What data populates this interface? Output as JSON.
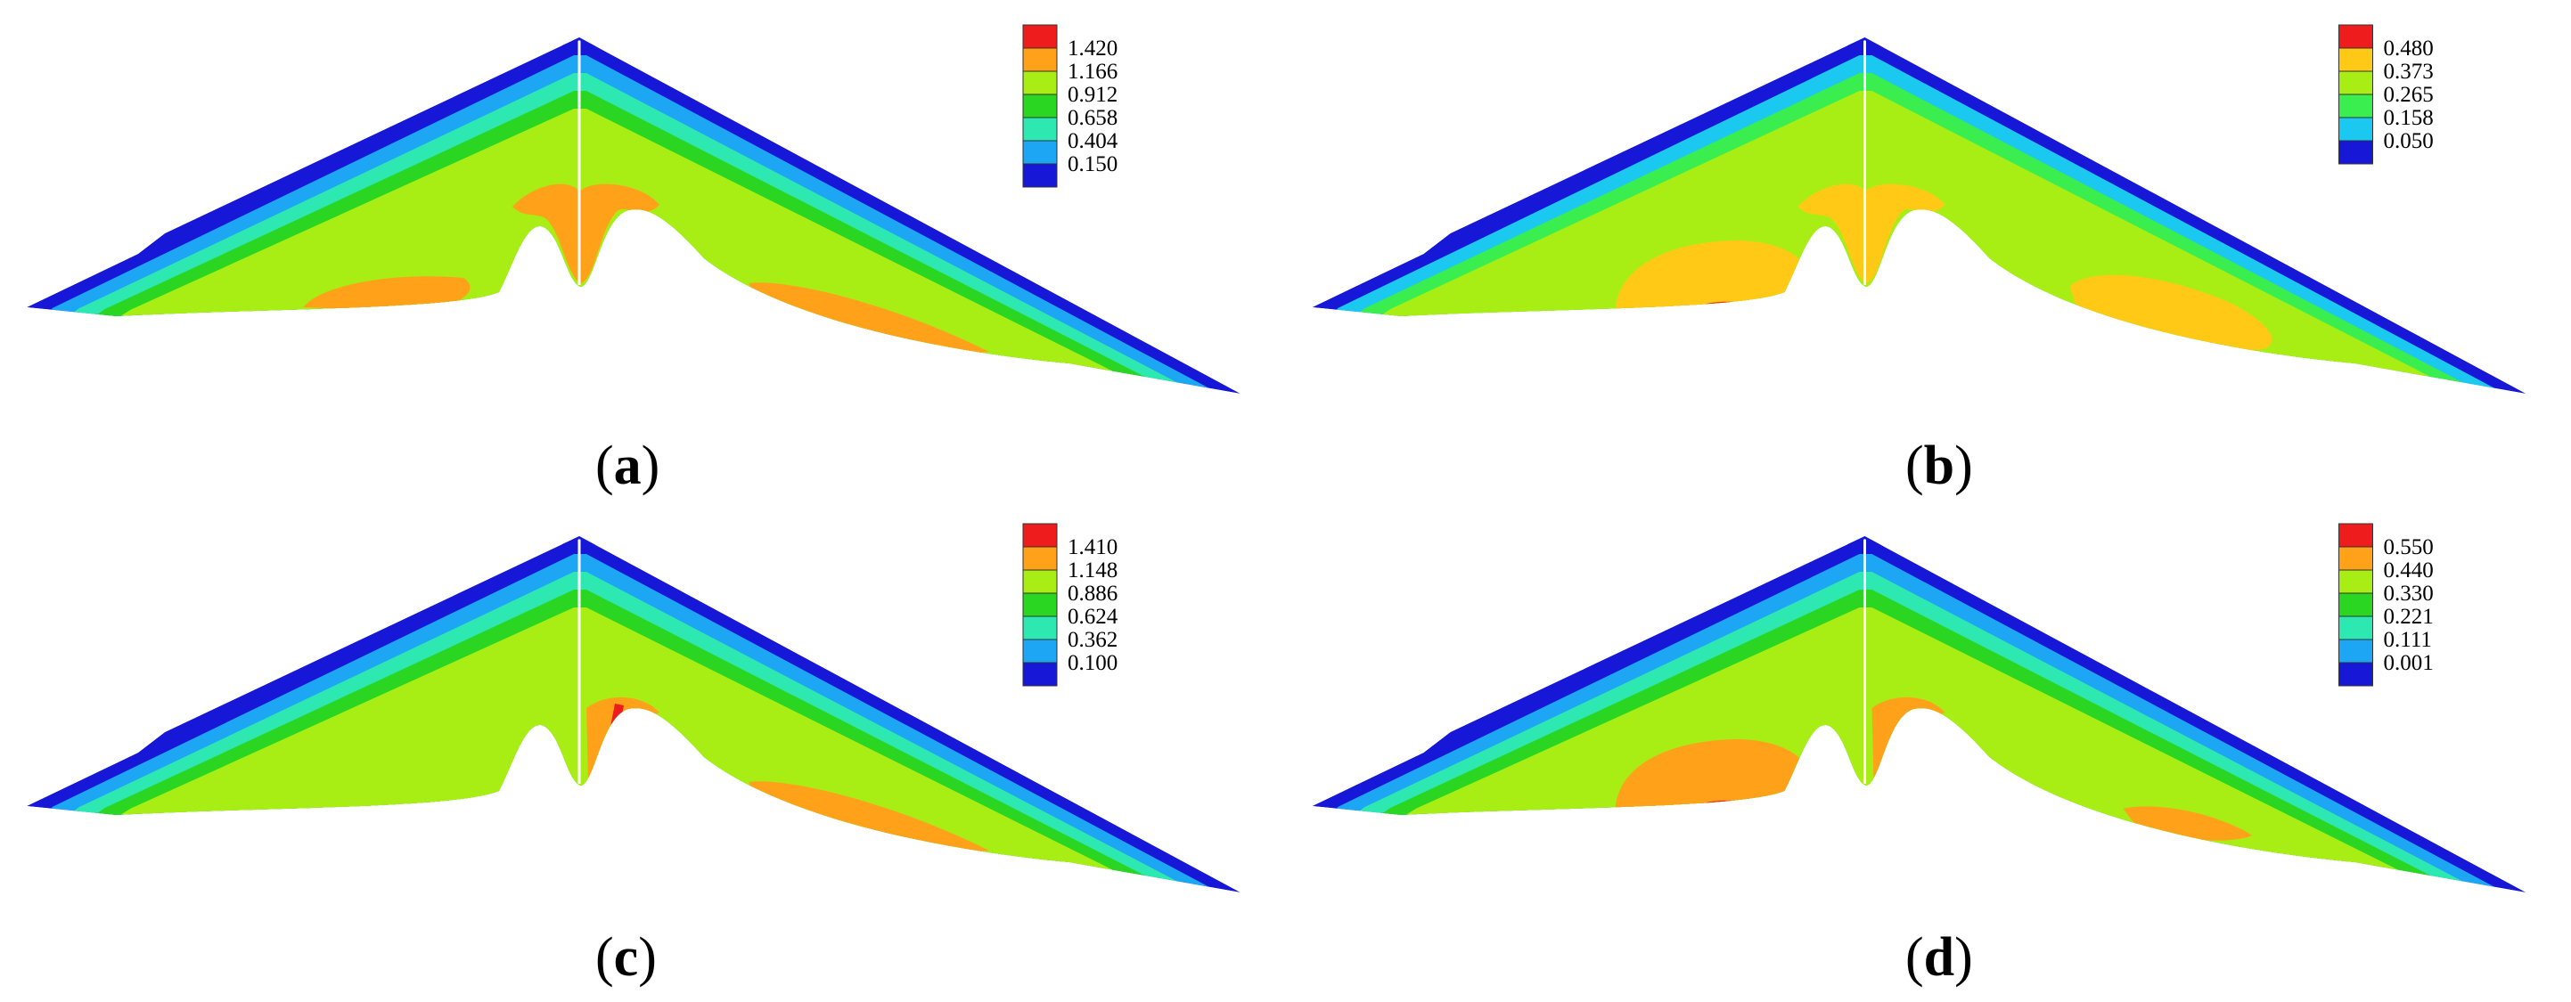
{
  "colors": {
    "red": "#ee1c1c",
    "orange": "#ffa21a",
    "yellow": "#ffc915",
    "yellowgreen": "#a8ee14",
    "green": "#2ad622",
    "lightgreen": "#39ee4e",
    "teal": "#2ee8b2",
    "skyblue": "#1ac8f0",
    "blue": "#1ca6f4",
    "darkblue": "#1717d8"
  },
  "panels": [
    {
      "id": "a",
      "caption_letter": "a",
      "legend": {
        "values": [
          "1.420",
          "1.166",
          "0.912",
          "0.658",
          "0.404",
          "0.150"
        ],
        "swatches": [
          "red",
          "orange",
          "yellowgreen",
          "green",
          "teal",
          "blue",
          "darkblue"
        ]
      },
      "bands": [
        "darkblue",
        "blue",
        "teal",
        "green",
        "yellowgreen"
      ],
      "inner": "yellowgreen",
      "core_band_count": 5,
      "spots": [
        {
          "color": "orange",
          "shape": "left-lobe"
        },
        {
          "color": "orange",
          "shape": "right-lobe"
        },
        {
          "color": "orange",
          "shape": "crest"
        },
        {
          "color": "red",
          "shape": "right-strip"
        }
      ]
    },
    {
      "id": "b",
      "caption_letter": "b",
      "legend": {
        "values": [
          "0.480",
          "0.373",
          "0.265",
          "0.158",
          "0.050"
        ],
        "swatches": [
          "red",
          "yellow",
          "yellowgreen",
          "lightgreen",
          "skyblue",
          "darkblue"
        ]
      },
      "bands": [
        "darkblue",
        "skyblue",
        "lightgreen",
        "yellowgreen"
      ],
      "inner": "yellowgreen",
      "core_band_count": 4,
      "spots": [
        {
          "color": "yellow",
          "shape": "left-lobe-big"
        },
        {
          "color": "yellow",
          "shape": "right-lobe-big"
        },
        {
          "color": "yellow",
          "shape": "crest"
        },
        {
          "color": "red",
          "shape": "left-foot"
        }
      ]
    },
    {
      "id": "c",
      "caption_letter": "c",
      "legend": {
        "values": [
          "1.410",
          "1.148",
          "0.886",
          "0.624",
          "0.362",
          "0.100"
        ],
        "swatches": [
          "red",
          "orange",
          "yellowgreen",
          "green",
          "teal",
          "blue",
          "darkblue"
        ]
      },
      "bands": [
        "darkblue",
        "blue",
        "teal",
        "green",
        "yellowgreen"
      ],
      "inner": "yellowgreen",
      "core_band_count": 5,
      "spots": [
        {
          "color": "orange",
          "shape": "right-lobe"
        },
        {
          "color": "orange",
          "shape": "crest-right"
        },
        {
          "color": "red",
          "shape": "right-strip"
        },
        {
          "color": "red",
          "shape": "crest-mark"
        }
      ]
    },
    {
      "id": "d",
      "caption_letter": "d",
      "legend": {
        "values": [
          "0.550",
          "0.440",
          "0.330",
          "0.221",
          "0.111",
          "0.001"
        ],
        "swatches": [
          "red",
          "orange",
          "yellowgreen",
          "green",
          "teal",
          "blue",
          "darkblue"
        ]
      },
      "bands": [
        "darkblue",
        "blue",
        "teal",
        "green",
        "yellowgreen"
      ],
      "inner": "yellowgreen",
      "core_band_count": 5,
      "spots": [
        {
          "color": "orange",
          "shape": "left-lobe-big"
        },
        {
          "color": "orange",
          "shape": "right-lobe-small"
        },
        {
          "color": "orange",
          "shape": "crest-right"
        },
        {
          "color": "red",
          "shape": "left-foot"
        }
      ]
    }
  ]
}
